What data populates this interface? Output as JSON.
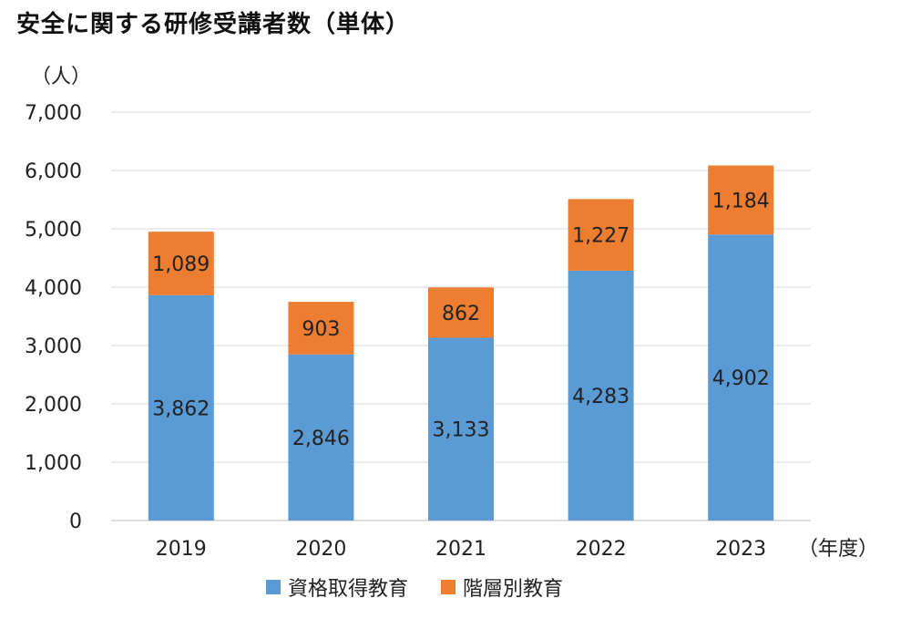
{
  "chart_data": {
    "type": "bar",
    "stacked": true,
    "title": "安全に関する研修受講者数（単体）",
    "ylabel": "（人）",
    "xlabel": "（年度）",
    "categories": [
      "2019",
      "2020",
      "2021",
      "2022",
      "2023"
    ],
    "series": [
      {
        "name": "資格取得教育",
        "color": "#5b9bd5",
        "values": [
          3862,
          2846,
          3133,
          4283,
          4902
        ],
        "labels": [
          "3,862",
          "2,846",
          "3,133",
          "4,283",
          "4,902"
        ]
      },
      {
        "name": "階層別教育",
        "color": "#ed7d31",
        "values": [
          1089,
          903,
          862,
          1227,
          1184
        ],
        "labels": [
          "1,089",
          "903",
          "862",
          "1,227",
          "1,184"
        ]
      }
    ],
    "ylim": [
      0,
      7000
    ],
    "yticks": [
      0,
      1000,
      2000,
      3000,
      4000,
      5000,
      6000,
      7000
    ],
    "ytick_labels": [
      "0",
      "1,000",
      "2,000",
      "3,000",
      "4,000",
      "5,000",
      "6,000",
      "7,000"
    ],
    "grid": true,
    "legend_position": "bottom"
  }
}
